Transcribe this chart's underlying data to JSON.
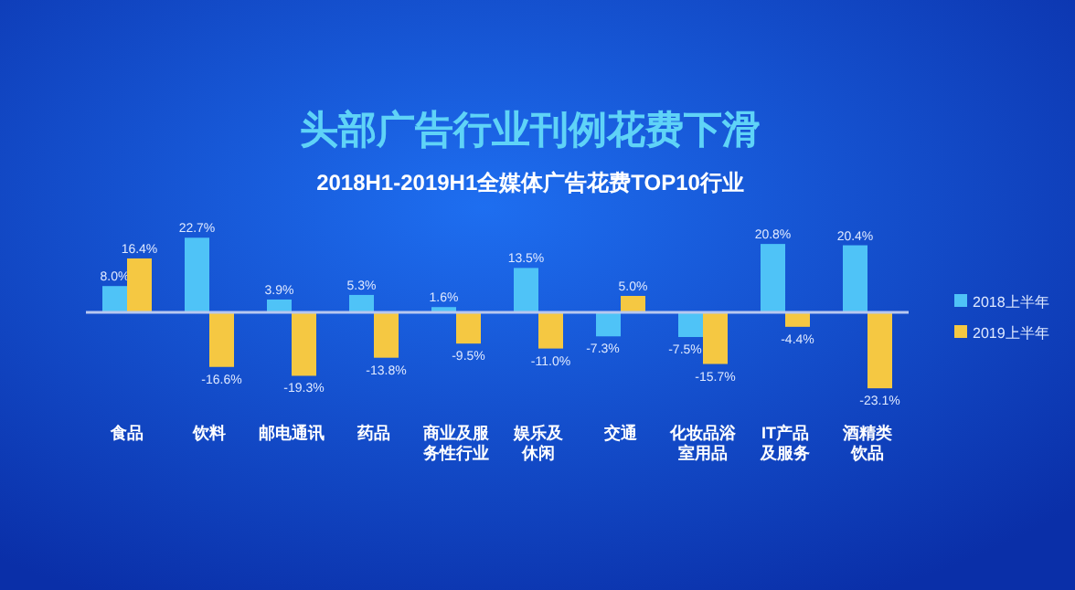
{
  "chart_data": {
    "type": "bar",
    "title": "头部广告行业刊例花费下滑",
    "subtitle": "2018H1-2019H1全媒体广告花费TOP10行业",
    "categories": [
      "食品",
      "饮料",
      "邮电通讯",
      "药品",
      "商业及服务性行业",
      "娱乐及休闲",
      "交通",
      "化妆品浴室用品",
      "IT产品及服务",
      "酒精类饮品"
    ],
    "series": [
      {
        "name": "2018上半年",
        "color": "#4fc3f7",
        "values": [
          8.0,
          22.7,
          3.9,
          5.3,
          1.6,
          13.5,
          -7.3,
          -7.5,
          20.8,
          20.4
        ],
        "value_labels": [
          "8.0%",
          "22.7%",
          "3.9%",
          "5.3%",
          "1.6%",
          "13.5%",
          "-7.3%",
          "-7.5%",
          "20.8%",
          "20.4%"
        ]
      },
      {
        "name": "2019上半年",
        "color": "#f5c842",
        "values": [
          16.4,
          -16.6,
          -19.3,
          -13.8,
          -9.5,
          -11.0,
          5.0,
          -15.7,
          -4.4,
          -23.1
        ],
        "value_labels": [
          "16.4%",
          "-16.6%",
          "-19.3%",
          "-13.8%",
          "-9.5%",
          "-11.0%",
          "5.0%",
          "-15.7%",
          "-4.4%",
          "-23.1%"
        ]
      }
    ],
    "ref_lines": [
      {
        "axis": "y",
        "value": 0,
        "color": "#b8c8f0"
      }
    ],
    "legend": "right"
  }
}
